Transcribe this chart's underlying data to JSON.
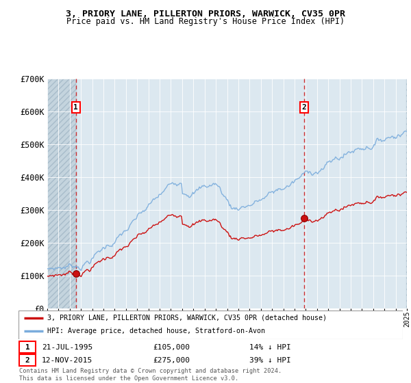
{
  "title1": "3, PRIORY LANE, PILLERTON PRIORS, WARWICK, CV35 0PR",
  "title2": "Price paid vs. HM Land Registry's House Price Index (HPI)",
  "ylim": [
    0,
    700000
  ],
  "yticks": [
    0,
    100000,
    200000,
    300000,
    400000,
    500000,
    600000,
    700000
  ],
  "ytick_labels": [
    "£0",
    "£100K",
    "£200K",
    "£300K",
    "£400K",
    "£500K",
    "£600K",
    "£700K"
  ],
  "hpi_color": "#7aacdc",
  "price_color": "#cc1111",
  "vline_color": "#cc1111",
  "background_color": "#dce8f0",
  "legend_label1": "3, PRIORY LANE, PILLERTON PRIORS, WARWICK, CV35 0PR (detached house)",
  "legend_label2": "HPI: Average price, detached house, Stratford-on-Avon",
  "footer": "Contains HM Land Registry data © Crown copyright and database right 2024.\nThis data is licensed under the Open Government Licence v3.0.",
  "sale1_date": 1995.55,
  "sale1_price": 105000,
  "sale2_date": 2015.87,
  "sale2_price": 275000,
  "xmin": 1993,
  "xmax": 2025
}
